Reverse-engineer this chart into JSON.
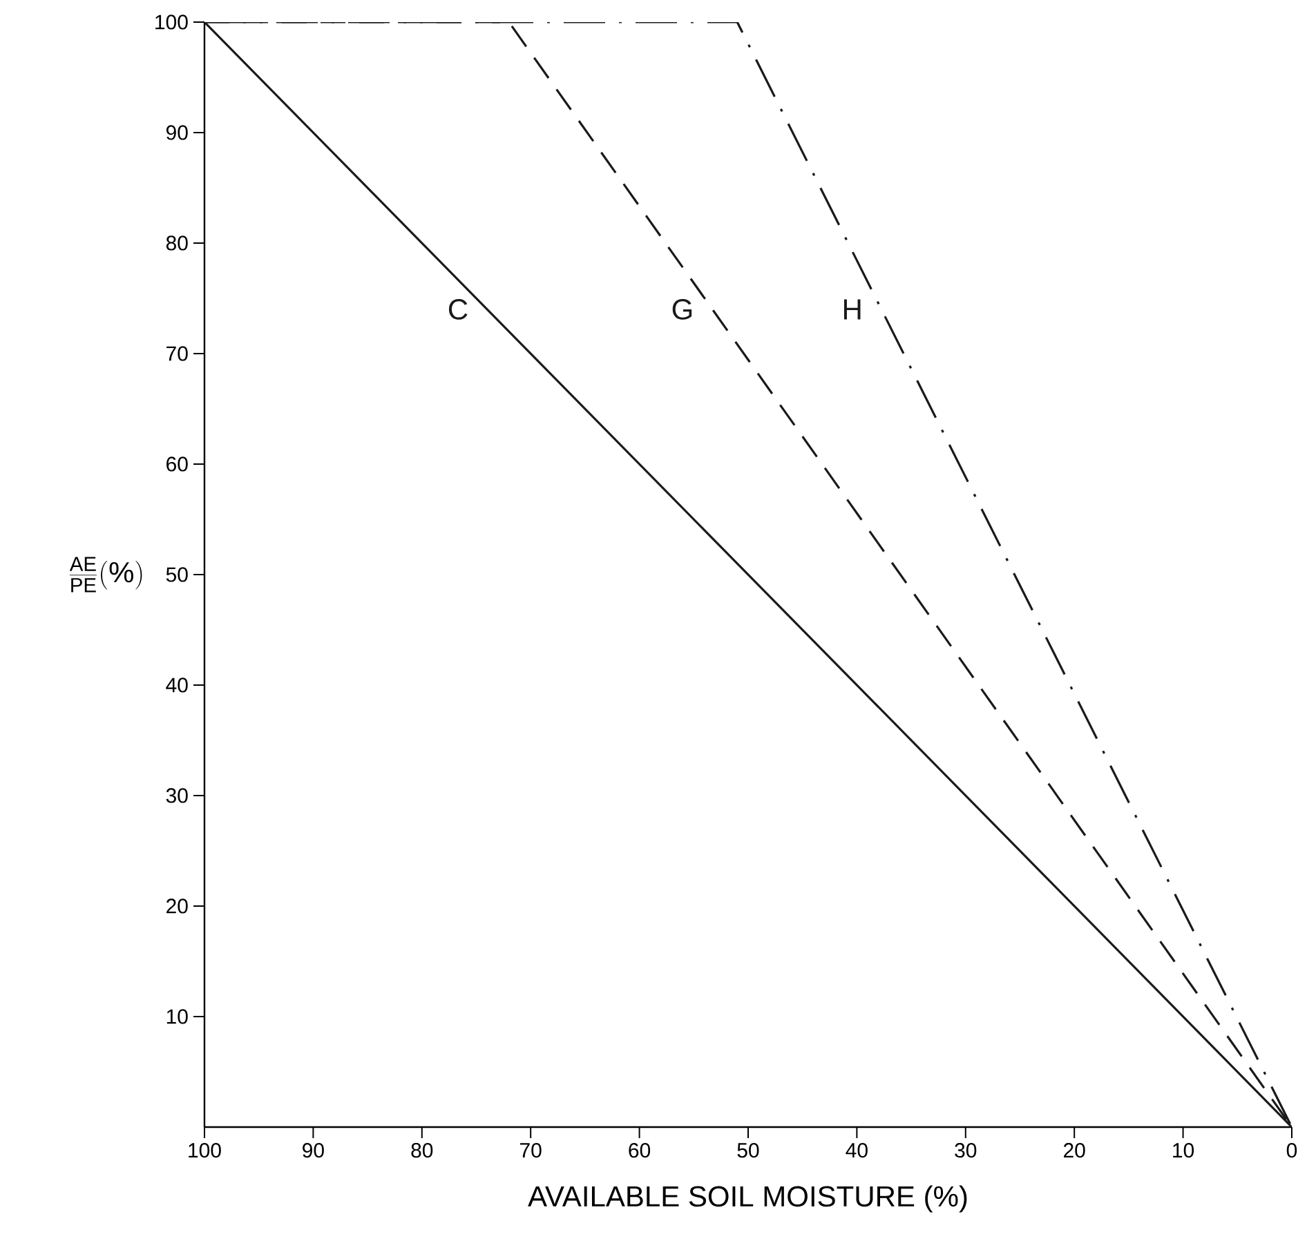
{
  "chart_data": {
    "type": "line",
    "xlabel": "AVAILABLE SOIL MOISTURE (%)",
    "ylabel": "\\frac{\\mathrm{AE}}{\\mathrm{PE}}(\\%)",
    "xlim": [
      100,
      0
    ],
    "ylim": [
      0,
      100
    ],
    "xticks": [
      100,
      90,
      80,
      70,
      60,
      50,
      40,
      30,
      20,
      10,
      0
    ],
    "yticks": [
      10,
      20,
      30,
      40,
      50,
      60,
      70,
      80,
      90,
      100
    ],
    "grid": false,
    "marker": "none",
    "series": [
      {
        "name": "C",
        "color": "#1a1a1a",
        "line_style": "solid",
        "x": [
          100,
          0
        ],
        "values": [
          100,
          0
        ]
      },
      {
        "name": "G",
        "color": "#1a1a1a",
        "line_style": "dashed",
        "x": [
          100,
          72,
          0
        ],
        "values": [
          100,
          100,
          0
        ]
      },
      {
        "name": "H",
        "color": "#1a1a1a",
        "line_style": "dashdot",
        "x": [
          100,
          51,
          0
        ],
        "values": [
          100,
          100,
          0
        ]
      }
    ]
  }
}
